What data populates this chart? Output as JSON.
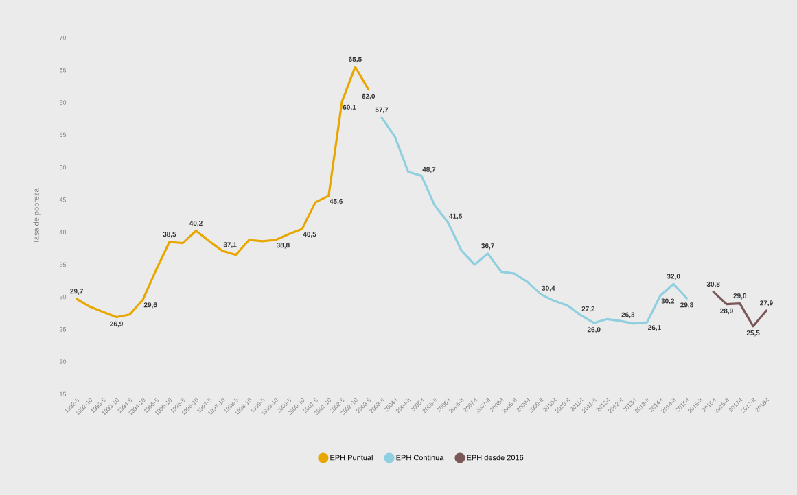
{
  "chart_data": {
    "type": "line",
    "ylabel": "Tasa de pobreza",
    "categories": [
      "1992-5",
      "1992-10",
      "1993-5",
      "1993-10",
      "1994-5",
      "1994-10",
      "1995-5",
      "1995-10",
      "1996-5",
      "1996-10",
      "1997-5",
      "1997-10",
      "1998-5",
      "1998-10",
      "1999-5",
      "1999-10",
      "2000-5",
      "2000-10",
      "2001-5",
      "2001-10",
      "2002-5",
      "2002-10",
      "2003-5",
      "2003-II",
      "2004-I",
      "2004-II",
      "2005-I",
      "2005-II",
      "2006-I",
      "2006-II",
      "2007-I",
      "2007-II",
      "2008-I",
      "2008-II",
      "2009-I",
      "2009-II",
      "2010-I",
      "2010-II",
      "2011-I",
      "2011-II",
      "2012-I",
      "2012-II",
      "2013-I",
      "2013-II",
      "2014-I",
      "2014-II",
      "2015-I",
      "2015-II",
      "2016-I",
      "2016-II",
      "2017-I",
      "2017-II",
      "2018-I"
    ],
    "ylim": [
      15,
      70
    ],
    "yticks": [
      15,
      20,
      25,
      30,
      35,
      40,
      45,
      50,
      55,
      60,
      65,
      70
    ],
    "legend": "bottom",
    "series": [
      {
        "name": "EPH Puntual",
        "color": "#e8a600",
        "values": [
          29.7,
          28.5,
          27.7,
          26.9,
          27.3,
          29.6,
          34.2,
          38.5,
          38.3,
          40.2,
          38.6,
          37.1,
          36.5,
          38.8,
          38.6,
          38.8,
          39.7,
          40.5,
          44.6,
          45.6,
          60.1,
          65.5,
          62.0,
          null,
          null,
          null,
          null,
          null,
          null,
          null,
          null,
          null,
          null,
          null,
          null,
          null,
          null,
          null,
          null,
          null,
          null,
          null,
          null,
          null,
          null,
          null,
          null,
          null,
          null,
          null,
          null,
          null,
          null
        ],
        "value_labels": [
          "29,7",
          null,
          null,
          "26,9",
          null,
          "29,6",
          null,
          "38,5",
          null,
          "40,2",
          null,
          "37,1",
          null,
          null,
          null,
          "38,8",
          null,
          "40,5",
          null,
          "45,6",
          "60,1",
          "65,5",
          "62,0",
          null,
          null,
          null,
          null,
          null,
          null,
          null,
          null,
          null,
          null,
          null,
          null,
          null,
          null,
          null,
          null,
          null,
          null,
          null,
          null,
          null,
          null,
          null,
          null,
          null,
          null,
          null,
          null,
          null,
          null
        ]
      },
      {
        "name": "EPH Continua",
        "color": "#8fcfe0",
        "values": [
          null,
          null,
          null,
          null,
          null,
          null,
          null,
          null,
          null,
          null,
          null,
          null,
          null,
          null,
          null,
          null,
          null,
          null,
          null,
          null,
          null,
          null,
          null,
          57.7,
          54.7,
          49.3,
          48.7,
          44.1,
          41.5,
          37.2,
          35.0,
          36.7,
          33.9,
          33.6,
          32.3,
          30.4,
          29.4,
          28.7,
          27.2,
          26.0,
          26.6,
          26.3,
          25.9,
          26.1,
          30.2,
          32.0,
          29.8,
          null,
          null,
          null,
          null,
          null,
          null
        ],
        "value_labels": [
          null,
          null,
          null,
          null,
          null,
          null,
          null,
          null,
          null,
          null,
          null,
          null,
          null,
          null,
          null,
          null,
          null,
          null,
          null,
          null,
          null,
          null,
          null,
          "57,7",
          null,
          null,
          "48,7",
          null,
          "41,5",
          null,
          null,
          "36,7",
          null,
          null,
          null,
          "30,4",
          null,
          null,
          "27,2",
          "26,0",
          null,
          "26,3",
          null,
          "26,1",
          "30,2",
          "32,0",
          "29,8",
          null,
          null,
          null,
          null,
          null,
          null
        ]
      },
      {
        "name": "EPH desde 2016",
        "color": "#7b5858",
        "values": [
          null,
          null,
          null,
          null,
          null,
          null,
          null,
          null,
          null,
          null,
          null,
          null,
          null,
          null,
          null,
          null,
          null,
          null,
          null,
          null,
          null,
          null,
          null,
          null,
          null,
          null,
          null,
          null,
          null,
          null,
          null,
          null,
          null,
          null,
          null,
          null,
          null,
          null,
          null,
          null,
          null,
          null,
          null,
          null,
          null,
          null,
          null,
          null,
          30.8,
          28.9,
          29.0,
          25.5,
          27.9
        ],
        "value_labels": [
          null,
          null,
          null,
          null,
          null,
          null,
          null,
          null,
          null,
          null,
          null,
          null,
          null,
          null,
          null,
          null,
          null,
          null,
          null,
          null,
          null,
          null,
          null,
          null,
          null,
          null,
          null,
          null,
          null,
          null,
          null,
          null,
          null,
          null,
          null,
          null,
          null,
          null,
          null,
          null,
          null,
          null,
          null,
          null,
          null,
          null,
          null,
          null,
          "30,8",
          "28,9",
          "29,0",
          "25,5",
          "27,9"
        ]
      }
    ]
  }
}
